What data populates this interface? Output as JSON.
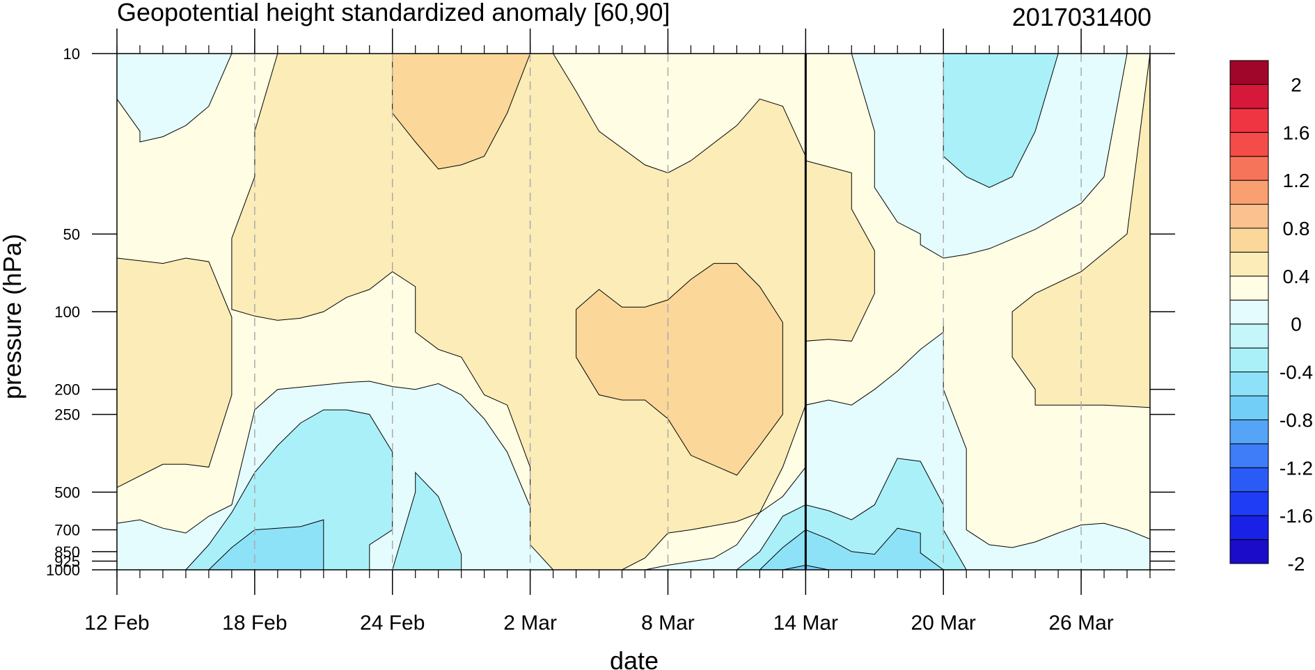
{
  "chart_data": {
    "type": "heatmap",
    "title": "Geopotential height standardized anomaly [60,90]",
    "date_label": "2017031400",
    "xlabel": "date",
    "ylabel": "pressure (hPa)",
    "x_range_days": [
      "2017-02-12",
      "2017-03-29"
    ],
    "x_ticks": [
      {
        "label": "12 Feb",
        "date": "2017-02-12"
      },
      {
        "label": "18 Feb",
        "date": "2017-02-18"
      },
      {
        "label": "24 Feb",
        "date": "2017-02-24"
      },
      {
        "label": "2 Mar",
        "date": "2017-03-02"
      },
      {
        "label": "8 Mar",
        "date": "2017-03-08"
      },
      {
        "label": "14 Mar",
        "date": "2017-03-14"
      },
      {
        "label": "20 Mar",
        "date": "2017-03-20"
      },
      {
        "label": "26 Mar",
        "date": "2017-03-26"
      }
    ],
    "y_scale": "log",
    "y_range": [
      1000,
      10
    ],
    "y_ticks": [
      {
        "label": "10",
        "value": 10
      },
      {
        "label": "50",
        "value": 50
      },
      {
        "label": "100",
        "value": 100
      },
      {
        "label": "200",
        "value": 200
      },
      {
        "label": "250",
        "value": 250
      },
      {
        "label": "500",
        "value": 500
      },
      {
        "label": "700",
        "value": 700
      },
      {
        "label": "850",
        "value": 850
      },
      {
        "label": "925",
        "value": 925
      },
      {
        "label": "1000",
        "value": 1000
      }
    ],
    "highlight_date": "2017-03-14",
    "colorbar": {
      "colors": [
        "#1a0cc8",
        "#1a21e6",
        "#1f3df5",
        "#2b5bf7",
        "#3e7df7",
        "#55a4f6",
        "#72cef7",
        "#8ee2f8",
        "#aaf0f9",
        "#c4f6fa",
        "#e4fcfd",
        "#fffde4",
        "#fbecb8",
        "#fbd79a",
        "#fbc18f",
        "#f9a070",
        "#f6745a",
        "#f44c48",
        "#ef3542",
        "#d6183a",
        "#a0052a"
      ],
      "labels": [
        {
          "label": "2",
          "value": 2
        },
        {
          "label": "1.6",
          "value": 1.6
        },
        {
          "label": "1.2",
          "value": 1.2
        },
        {
          "label": "0.8",
          "value": 0.8
        },
        {
          "label": "0.4",
          "value": 0.4
        },
        {
          "label": "0",
          "value": 0
        },
        {
          "label": "-0.4",
          "value": -0.4
        },
        {
          "label": "-0.8",
          "value": -0.8
        },
        {
          "label": "-1.2",
          "value": -1.2
        },
        {
          "label": "-1.6",
          "value": -1.6
        },
        {
          "label": "-2",
          "value": -2
        }
      ]
    },
    "regions": [
      {
        "level": 0.2,
        "color": "#fbecb8",
        "points": [
          [
            "2017-02-12",
            62
          ],
          [
            "2017-02-14",
            65
          ],
          [
            "2017-02-15",
            62
          ],
          [
            "2017-02-16",
            64
          ],
          [
            "2017-02-17",
            105
          ],
          [
            "2017-02-17",
            210
          ],
          [
            "2017-02-16",
            400
          ],
          [
            "2017-02-15",
            390
          ],
          [
            "2017-02-14",
            390
          ],
          [
            "2017-02-12",
            480
          ]
        ]
      },
      {
        "level": 0.2,
        "color": "#fbecb8",
        "points": [
          [
            "2017-02-19",
            10
          ],
          [
            "2017-03-02",
            10
          ],
          [
            "2017-03-02",
            10
          ],
          [
            "2017-03-03",
            10
          ],
          [
            "2017-03-04",
            14
          ],
          [
            "2017-03-05",
            20
          ],
          [
            "2017-03-07",
            27
          ],
          [
            "2017-03-08",
            29
          ],
          [
            "2017-03-09",
            26
          ],
          [
            "2017-03-11",
            19
          ],
          [
            "2017-03-12",
            15
          ],
          [
            "2017-03-13",
            16
          ],
          [
            "2017-03-14",
            25
          ],
          [
            "2017-03-14",
            120
          ],
          [
            "2017-03-14",
            230
          ],
          [
            "2017-03-13",
            400
          ],
          [
            "2017-03-12",
            600
          ],
          [
            "2017-03-11",
            650
          ],
          [
            "2017-03-09",
            700
          ],
          [
            "2017-03-08",
            720
          ],
          [
            "2017-03-07",
            900
          ],
          [
            "2017-03-06",
            1000
          ],
          [
            "2017-03-03",
            1000
          ],
          [
            "2017-03-02",
            940
          ],
          [
            "2017-03-02",
            800
          ],
          [
            "2017-03-02",
            600
          ],
          [
            "2017-03-02",
            400
          ],
          [
            "2017-03-01",
            230
          ],
          [
            "2017-02-28",
            210
          ],
          [
            "2017-02-27",
            150
          ],
          [
            "2017-02-26",
            140
          ],
          [
            "2017-02-25",
            120
          ],
          [
            "2017-02-25",
            80
          ],
          [
            "2017-02-24",
            70
          ],
          [
            "2017-02-23",
            82
          ],
          [
            "2017-02-22",
            88
          ],
          [
            "2017-02-21",
            100
          ],
          [
            "2017-02-20",
            106
          ],
          [
            "2017-02-19",
            108
          ],
          [
            "2017-02-18",
            104
          ],
          [
            "2017-02-17",
            98
          ],
          [
            "2017-02-17",
            52
          ],
          [
            "2017-02-18",
            30
          ],
          [
            "2017-02-18",
            20
          ]
        ]
      },
      {
        "level": 0.6,
        "color": "#fbd79a",
        "points": [
          [
            "2017-02-24",
            10
          ],
          [
            "2017-03-02",
            10
          ],
          [
            "2017-03-01",
            17
          ],
          [
            "2017-02-28",
            25
          ],
          [
            "2017-02-27",
            27
          ],
          [
            "2017-02-26",
            28
          ],
          [
            "2017-02-25",
            22
          ],
          [
            "2017-02-24",
            17
          ]
        ]
      },
      {
        "level": 0.6,
        "color": "#fbd79a",
        "points": [
          [
            "2017-03-04",
            98
          ],
          [
            "2017-03-05",
            82
          ],
          [
            "2017-03-06",
            96
          ],
          [
            "2017-03-07",
            96
          ],
          [
            "2017-03-08",
            90
          ],
          [
            "2017-03-09",
            75
          ],
          [
            "2017-03-10",
            65
          ],
          [
            "2017-03-11",
            65
          ],
          [
            "2017-03-12",
            80
          ],
          [
            "2017-03-13",
            110
          ],
          [
            "2017-03-13",
            170
          ],
          [
            "2017-03-13",
            250
          ],
          [
            "2017-03-12",
            330
          ],
          [
            "2017-03-11",
            430
          ],
          [
            "2017-03-09",
            360
          ],
          [
            "2017-03-08",
            260
          ],
          [
            "2017-03-07",
            220
          ],
          [
            "2017-03-06",
            220
          ],
          [
            "2017-03-05",
            210
          ],
          [
            "2017-03-04",
            150
          ]
        ]
      },
      {
        "level": 0.2,
        "color": "#fbecb8",
        "points": [
          [
            "2017-03-14",
            26
          ],
          [
            "2017-03-16",
            29
          ],
          [
            "2017-03-16",
            40
          ],
          [
            "2017-03-17",
            58
          ],
          [
            "2017-03-17",
            85
          ],
          [
            "2017-03-16",
            130
          ],
          [
            "2017-03-15",
            128
          ],
          [
            "2017-03-14",
            130
          ]
        ]
      },
      {
        "level": 0.2,
        "color": "#fbecb8",
        "points": [
          [
            "2017-03-23",
            100
          ],
          [
            "2017-03-24",
            85
          ],
          [
            "2017-03-26",
            70
          ],
          [
            "2017-03-28",
            50
          ],
          [
            "2017-03-29",
            10
          ],
          [
            "2017-03-29",
            235
          ],
          [
            "2017-03-27",
            230
          ],
          [
            "2017-03-25",
            230
          ],
          [
            "2017-03-24",
            230
          ],
          [
            "2017-03-24",
            200
          ],
          [
            "2017-03-23",
            150
          ]
        ]
      },
      {
        "level": -0.2,
        "color": "#e4fcfd",
        "points": [
          [
            "2017-02-12",
            10
          ],
          [
            "2017-02-17",
            10
          ],
          [
            "2017-02-16",
            16
          ],
          [
            "2017-02-15",
            19
          ],
          [
            "2017-02-14",
            21
          ],
          [
            "2017-02-13",
            22
          ],
          [
            "2017-02-13",
            20
          ],
          [
            "2017-02-12",
            15
          ]
        ]
      },
      {
        "level": -0.2,
        "color": "#e4fcfd",
        "points": [
          [
            "2017-03-16",
            10
          ],
          [
            "2017-03-28",
            10
          ],
          [
            "2017-03-27",
            30
          ],
          [
            "2017-03-26",
            38
          ],
          [
            "2017-03-24",
            48
          ],
          [
            "2017-03-22",
            57
          ],
          [
            "2017-03-21",
            60
          ],
          [
            "2017-03-20",
            62
          ],
          [
            "2017-03-19",
            55
          ],
          [
            "2017-03-19",
            50
          ],
          [
            "2017-03-18",
            45
          ],
          [
            "2017-03-17",
            33
          ],
          [
            "2017-03-17",
            20
          ]
        ]
      },
      {
        "level": -0.2,
        "color": "#e4fcfd",
        "points": [
          [
            "2017-02-12",
            660
          ],
          [
            "2017-02-13",
            640
          ],
          [
            "2017-02-14",
            690
          ],
          [
            "2017-02-15",
            720
          ],
          [
            "2017-02-16",
            620
          ],
          [
            "2017-02-17",
            560
          ],
          [
            "2017-02-18",
            240
          ],
          [
            "2017-02-19",
            200
          ],
          [
            "2017-02-21",
            192
          ],
          [
            "2017-02-22",
            188
          ],
          [
            "2017-02-23",
            186
          ],
          [
            "2017-02-24",
            195
          ],
          [
            "2017-02-25",
            200
          ],
          [
            "2017-02-26",
            190
          ],
          [
            "2017-02-27",
            210
          ],
          [
            "2017-02-28",
            260
          ],
          [
            "2017-03-01",
            350
          ],
          [
            "2017-03-02",
            570
          ],
          [
            "2017-03-02",
            800
          ],
          [
            "2017-03-03",
            1000
          ],
          [
            "2017-02-12",
            1000
          ]
        ]
      },
      {
        "level": -0.2,
        "color": "#e4fcfd",
        "points": [
          [
            "2017-03-07",
            1000
          ],
          [
            "2017-03-08",
            960
          ],
          [
            "2017-03-10",
            900
          ],
          [
            "2017-03-11",
            800
          ],
          [
            "2017-03-12",
            600
          ],
          [
            "2017-03-13",
            520
          ],
          [
            "2017-03-14",
            400
          ],
          [
            "2017-03-14",
            230
          ],
          [
            "2017-03-15",
            220
          ],
          [
            "2017-03-16",
            230
          ],
          [
            "2017-03-17",
            200
          ],
          [
            "2017-03-18",
            170
          ],
          [
            "2017-03-19",
            140
          ],
          [
            "2017-03-20",
            120
          ],
          [
            "2017-03-20",
            110
          ],
          [
            "2017-03-20",
            120
          ],
          [
            "2017-03-20",
            200
          ],
          [
            "2017-03-21",
            340
          ],
          [
            "2017-03-21",
            700
          ],
          [
            "2017-03-22",
            800
          ],
          [
            "2017-03-23",
            820
          ],
          [
            "2017-03-24",
            780
          ],
          [
            "2017-03-25",
            720
          ],
          [
            "2017-03-26",
            670
          ],
          [
            "2017-03-27",
            660
          ],
          [
            "2017-03-28",
            700
          ],
          [
            "2017-03-29",
            760
          ],
          [
            "2017-03-29",
            1000
          ]
        ]
      },
      {
        "level": -0.6,
        "color": "#aaf0f9",
        "points": [
          [
            "2017-03-20",
            10
          ],
          [
            "2017-03-25",
            10
          ],
          [
            "2017-03-24",
            20
          ],
          [
            "2017-03-23",
            30
          ],
          [
            "2017-03-22",
            33
          ],
          [
            "2017-03-21",
            30
          ],
          [
            "2017-03-20",
            25
          ]
        ]
      },
      {
        "level": -0.6,
        "color": "#aaf0f9",
        "points": [
          [
            "2017-02-15",
            1000
          ],
          [
            "2017-02-16",
            800
          ],
          [
            "2017-02-17",
            600
          ],
          [
            "2017-02-18",
            420
          ],
          [
            "2017-02-19",
            330
          ],
          [
            "2017-02-20",
            270
          ],
          [
            "2017-02-21",
            240
          ],
          [
            "2017-02-22",
            240
          ],
          [
            "2017-02-23",
            250
          ],
          [
            "2017-02-24",
            350
          ],
          [
            "2017-02-24",
            450
          ],
          [
            "2017-02-24",
            700
          ],
          [
            "2017-02-23",
            800
          ],
          [
            "2017-02-23",
            1000
          ]
        ]
      },
      {
        "level": -0.6,
        "color": "#aaf0f9",
        "points": [
          [
            "2017-02-24",
            1000
          ],
          [
            "2017-02-25",
            500
          ],
          [
            "2017-02-25",
            420
          ],
          [
            "2017-02-26",
            520
          ],
          [
            "2017-02-27",
            870
          ],
          [
            "2017-02-27",
            1000
          ]
        ]
      },
      {
        "level": -0.6,
        "color": "#aaf0f9",
        "points": [
          [
            "2017-03-11",
            1000
          ],
          [
            "2017-03-12",
            850
          ],
          [
            "2017-03-13",
            620
          ],
          [
            "2017-03-14",
            560
          ],
          [
            "2017-03-15",
            590
          ],
          [
            "2017-03-16",
            640
          ],
          [
            "2017-03-17",
            560
          ],
          [
            "2017-03-18",
            370
          ],
          [
            "2017-03-19",
            380
          ],
          [
            "2017-03-20",
            560
          ],
          [
            "2017-03-20",
            700
          ],
          [
            "2017-03-21",
            1000
          ]
        ]
      },
      {
        "level": -1.0,
        "color": "#8ee2f8",
        "points": [
          [
            "2017-02-16",
            1000
          ],
          [
            "2017-02-17",
            820
          ],
          [
            "2017-02-18",
            700
          ],
          [
            "2017-02-20",
            680
          ],
          [
            "2017-02-21",
            640
          ],
          [
            "2017-02-21",
            700
          ],
          [
            "2017-02-21",
            1000
          ]
        ]
      },
      {
        "level": -1.0,
        "color": "#8ee2f8",
        "points": [
          [
            "2017-03-12",
            1000
          ],
          [
            "2017-03-13",
            820
          ],
          [
            "2017-03-14",
            700
          ],
          [
            "2017-03-15",
            760
          ],
          [
            "2017-03-16",
            850
          ],
          [
            "2017-03-17",
            870
          ],
          [
            "2017-03-18",
            690
          ],
          [
            "2017-03-19",
            720
          ],
          [
            "2017-03-19",
            860
          ],
          [
            "2017-03-20",
            1000
          ]
        ]
      },
      {
        "level": -1.4,
        "color": "#72cef7",
        "points": [
          [
            "2017-03-13",
            1000
          ],
          [
            "2017-03-14",
            960
          ],
          [
            "2017-03-15",
            1000
          ]
        ]
      }
    ]
  }
}
